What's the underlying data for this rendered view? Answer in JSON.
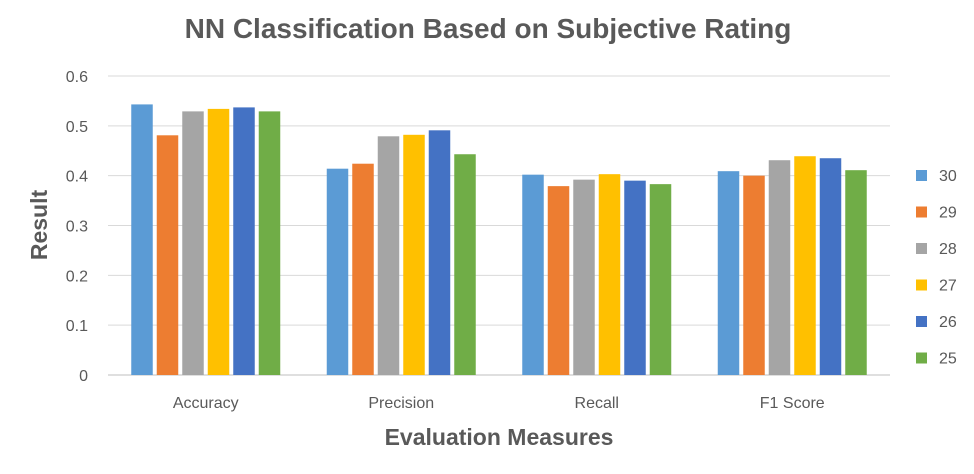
{
  "chart_data": {
    "type": "bar",
    "title": "NN Classification Based on Subjective Rating",
    "xlabel": "Evaluation Measures",
    "ylabel": "Result",
    "categories": [
      "Accuracy",
      "Precision",
      "Recall",
      "F1 Score"
    ],
    "ylim": [
      0,
      0.6
    ],
    "yticks": [
      "0",
      "0.1",
      "0.2",
      "0.3",
      "0.4",
      "0.5",
      "0.6"
    ],
    "grid": true,
    "legend_position": "right",
    "series": [
      {
        "name": "30",
        "color": "#5B9BD5",
        "values": [
          0.543,
          0.414,
          0.402,
          0.409
        ]
      },
      {
        "name": "29",
        "color": "#ED7D31",
        "values": [
          0.481,
          0.424,
          0.379,
          0.4
        ]
      },
      {
        "name": "28",
        "color": "#A5A5A5",
        "values": [
          0.529,
          0.479,
          0.392,
          0.431
        ]
      },
      {
        "name": "27",
        "color": "#FFC000",
        "values": [
          0.534,
          0.482,
          0.403,
          0.439
        ]
      },
      {
        "name": "26",
        "color": "#4472C4",
        "values": [
          0.537,
          0.491,
          0.39,
          0.435
        ]
      },
      {
        "name": "25",
        "color": "#70AD47",
        "values": [
          0.529,
          0.443,
          0.383,
          0.411
        ]
      }
    ]
  }
}
